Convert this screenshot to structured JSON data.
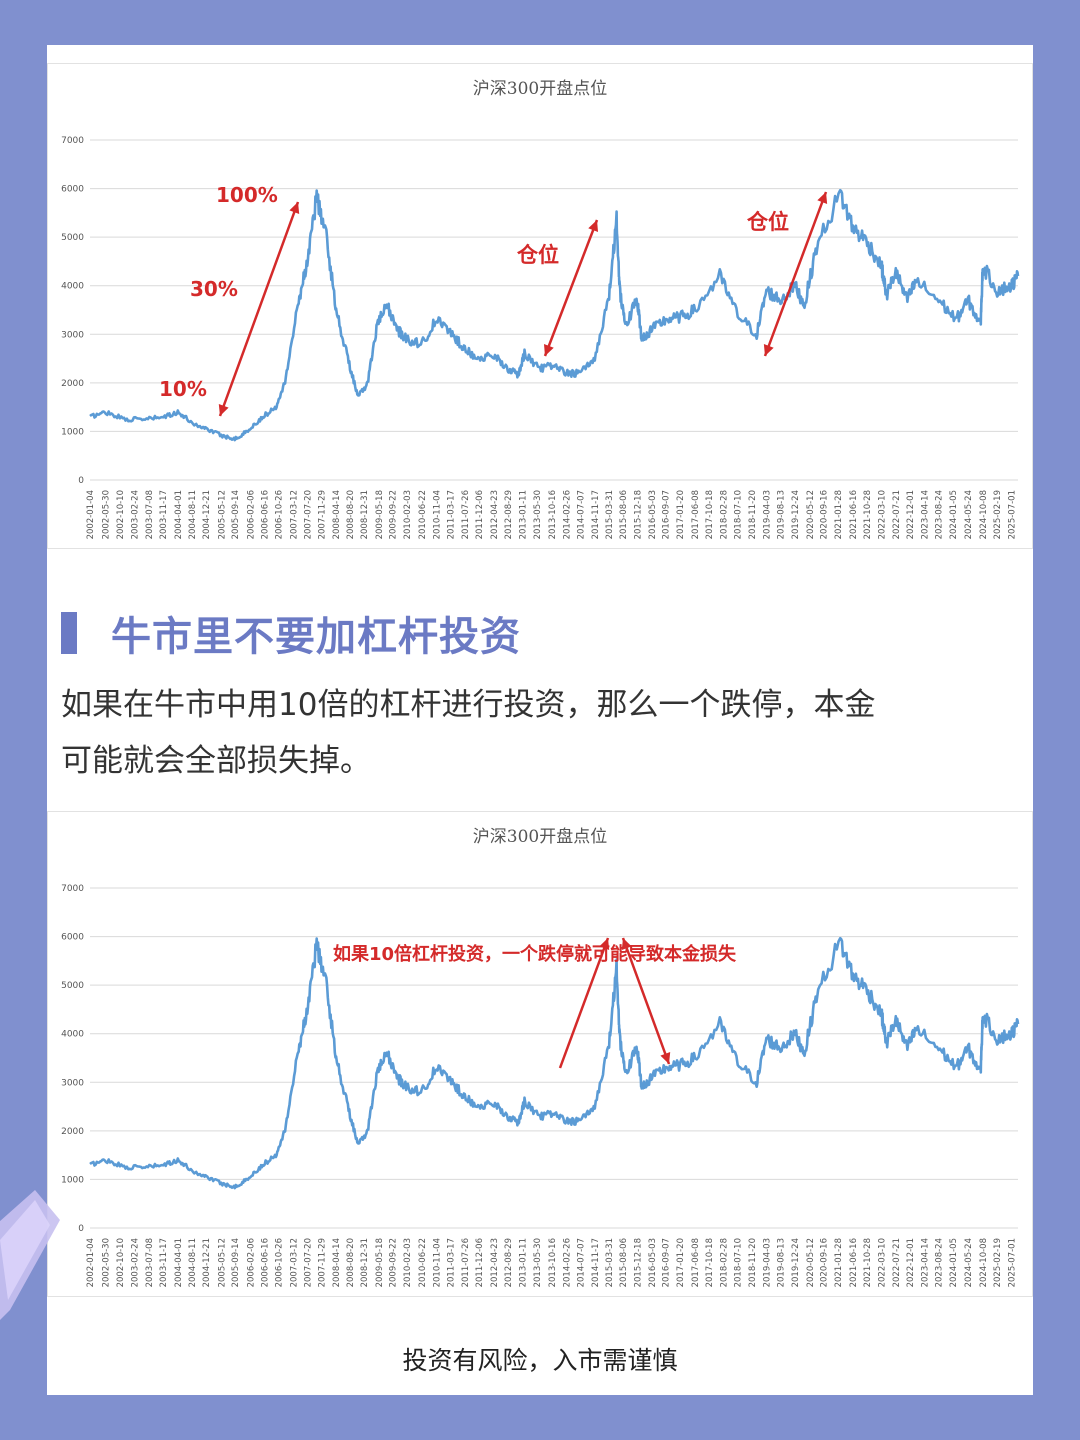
{
  "colors": {
    "background": "#8090cf",
    "accent": "#6b7ac4",
    "line": "#5b9bd5",
    "annotation": "#d42a2a"
  },
  "chart_data": [
    {
      "type": "line",
      "title": "沪深300开盘点位",
      "ylim": [
        0,
        7000
      ],
      "yticks": [
        "0",
        "1000",
        "2000",
        "3000",
        "4000",
        "5000",
        "6000",
        "7000"
      ],
      "grid": true,
      "legend": "none",
      "xticks": [
        "2002-01-04",
        "2002-05-30",
        "2002-10-10",
        "2003-02-24",
        "2003-07-08",
        "2003-11-17",
        "2004-04-01",
        "2004-08-11",
        "2004-12-21",
        "2005-05-12",
        "2005-09-14",
        "2006-02-06",
        "2006-06-16",
        "2006-10-26",
        "2007-03-12",
        "2007-07-20",
        "2007-11-29",
        "2008-04-14",
        "2008-08-20",
        "2008-12-31",
        "2009-05-18",
        "2009-09-22",
        "2010-02-03",
        "2010-06-22",
        "2010-11-04",
        "2011-03-17",
        "2011-07-26",
        "2011-12-06",
        "2012-04-23",
        "2012-08-29",
        "2013-01-11",
        "2013-05-30",
        "2013-10-16",
        "2014-02-26",
        "2014-07-07",
        "2014-11-17",
        "2015-03-31",
        "2015-08-06",
        "2015-12-18",
        "2016-05-03",
        "2016-09-07",
        "2017-01-20",
        "2017-06-08",
        "2017-10-18",
        "2018-02-28",
        "2018-07-10",
        "2018-11-20",
        "2019-04-03",
        "2019-08-13",
        "2019-12-24",
        "2020-05-12",
        "2020-09-16",
        "2021-01-28",
        "2021-06-16",
        "2021-10-28",
        "2022-03-10",
        "2022-07-21",
        "2022-12-01",
        "2023-04-14",
        "2023-08-24",
        "2024-01-05",
        "2024-05-24",
        "2024-10-08",
        "2025-02-19",
        "2025-07-01"
      ],
      "series": [
        {
          "x": [
            "2002-01-04",
            "2002-06-01",
            "2002-12-01",
            "2003-06-01",
            "2003-12-01",
            "2004-04-01",
            "2004-09-01",
            "2005-01-01",
            "2005-06-01",
            "2005-10-01",
            "2006-02-01",
            "2006-06-01",
            "2006-10-01",
            "2007-01-01",
            "2007-05-01",
            "2007-07-20",
            "2007-10-16",
            "2008-01-14",
            "2008-04-14",
            "2008-08-01",
            "2008-11-04",
            "2009-02-01",
            "2009-05-01",
            "2009-08-04",
            "2009-11-01",
            "2010-02-01",
            "2010-06-22",
            "2010-11-04",
            "2011-04-01",
            "2011-07-26",
            "2011-12-06",
            "2012-04-23",
            "2012-08-29",
            "2012-12-04",
            "2013-02-01",
            "2013-06-25",
            "2013-10-16",
            "2014-02-26",
            "2014-07-07",
            "2014-11-17",
            "2015-03-31",
            "2015-06-08",
            "2015-07-08",
            "2015-09-01",
            "2015-12-18",
            "2016-01-28",
            "2016-05-03",
            "2016-09-07",
            "2017-01-20",
            "2017-06-08",
            "2018-01-24",
            "2018-07-10",
            "2019-01-03",
            "2019-04-03",
            "2019-08-13",
            "2019-12-24",
            "2020-03-23",
            "2020-07-13",
            "2021-02-18",
            "2021-06-16",
            "2021-10-28",
            "2022-03-10",
            "2022-04-26",
            "2022-07-21",
            "2022-10-31",
            "2023-01-28",
            "2023-08-24",
            "2024-02-05",
            "2024-05-24",
            "2024-09-18",
            "2024-10-08",
            "2025-02-19",
            "2025-07-01",
            "2025-09-01"
          ],
          "y": [
            1300,
            1400,
            1250,
            1250,
            1300,
            1400,
            1150,
            1050,
            900,
            850,
            1050,
            1300,
            1500,
            2100,
            3700,
            4500,
            5850,
            5000,
            3500,
            2500,
            1700,
            2000,
            3200,
            3600,
            3100,
            2900,
            2800,
            3300,
            3000,
            2700,
            2500,
            2550,
            2300,
            2150,
            2600,
            2300,
            2350,
            2200,
            2200,
            2500,
            3800,
            5350,
            3900,
            3200,
            3700,
            2900,
            3100,
            3300,
            3350,
            3500,
            4200,
            3400,
            3000,
            3900,
            3700,
            4000,
            3600,
            4800,
            5900,
            5200,
            4900,
            4400,
            3800,
            4300,
            3700,
            4100,
            3700,
            3300,
            3700,
            3200,
            4400,
            3900,
            4000,
            4200
          ]
        }
      ]
    },
    {
      "type": "line",
      "title": "沪深300开盘点位",
      "ylim": [
        0,
        7000
      ],
      "yticks": [
        "0",
        "1000",
        "2000",
        "3000",
        "4000",
        "5000",
        "6000",
        "7000"
      ],
      "grid": true,
      "legend": "none"
    }
  ],
  "annotations_top": {
    "label_100": "100%",
    "label_30": "30%",
    "label_10": "10%",
    "label_pos1": "仓位",
    "label_pos2": "仓位"
  },
  "annotations_bottom": {
    "label_leverage": "如果10倍杠杆投资，一个跌停就可能导致本金损失"
  },
  "section": {
    "heading": "牛市里不要加杠杆投资",
    "paragraph_line1": "如果在牛市中用10倍的杠杆进行投资，那么一个跌停，本金",
    "paragraph_line2": "可能就会全部损失掉。"
  },
  "footer": {
    "disclaimer": "投资有风险，入市需谨慎"
  }
}
